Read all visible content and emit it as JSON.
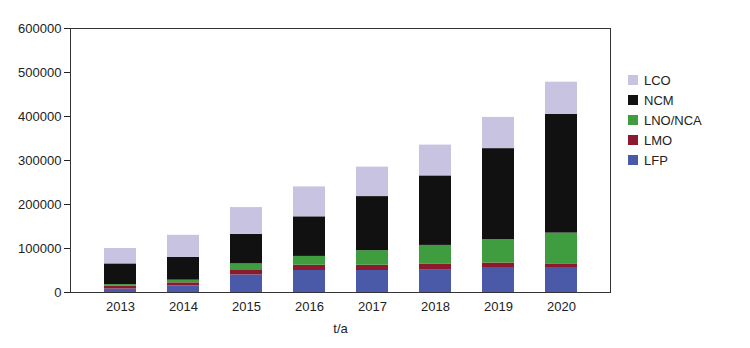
{
  "chart_data": {
    "type": "bar",
    "stacked": true,
    "x_label": "t/a",
    "categories": [
      "2013",
      "2014",
      "2015",
      "2016",
      "2017",
      "2018",
      "2019",
      "2020"
    ],
    "series": [
      {
        "name": "LFP",
        "color": "#4a5aa8",
        "values": [
          8000,
          15000,
          40000,
          50000,
          50000,
          52000,
          55000,
          55000
        ]
      },
      {
        "name": "LMO",
        "color": "#8b1a2e",
        "values": [
          6000,
          7000,
          10000,
          12000,
          12000,
          12000,
          12000,
          10000
        ]
      },
      {
        "name": "LNO/NCA",
        "color": "#3f9c3f",
        "values": [
          4000,
          6000,
          15000,
          20000,
          33000,
          43000,
          53000,
          70000
        ]
      },
      {
        "name": "NCM",
        "color": "#111111",
        "values": [
          47000,
          52000,
          67000,
          90000,
          123000,
          158000,
          207000,
          270000
        ]
      },
      {
        "name": "LCO",
        "color": "#c8c3e0",
        "values": [
          35000,
          50000,
          61000,
          68000,
          67000,
          70000,
          71000,
          73000
        ]
      }
    ],
    "ylim": [
      0,
      600000
    ],
    "yticks": [
      0,
      100000,
      200000,
      300000,
      400000,
      500000,
      600000
    ],
    "grid": false,
    "legend": "right"
  }
}
